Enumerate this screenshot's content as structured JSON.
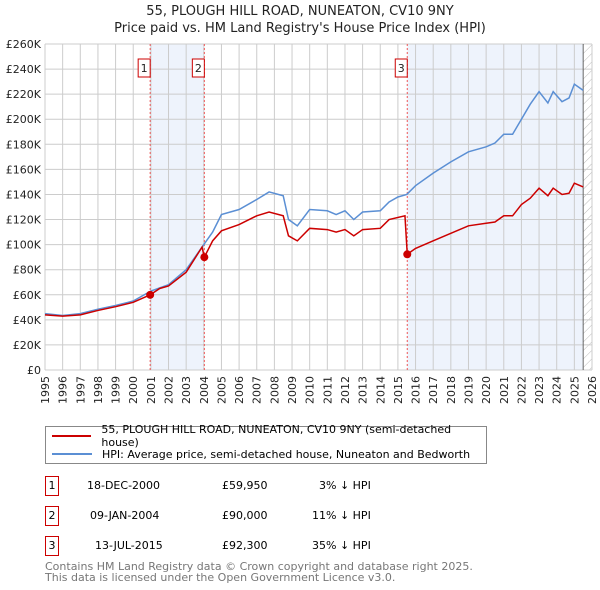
{
  "chart_data": {
    "type": "line",
    "title": "55, PLOUGH HILL ROAD, NUNEATON, CV10 9NY",
    "subtitle": "Price paid vs. HM Land Registry's House Price Index (HPI)",
    "xlim": [
      1995,
      2026
    ],
    "ylim": [
      0,
      260000
    ],
    "x_ticks": [
      "1995",
      "1996",
      "1997",
      "1998",
      "1999",
      "2000",
      "2001",
      "2002",
      "2003",
      "2004",
      "2005",
      "2006",
      "2007",
      "2008",
      "2009",
      "2010",
      "2011",
      "2012",
      "2013",
      "2014",
      "2015",
      "2016",
      "2017",
      "2018",
      "2019",
      "2020",
      "2021",
      "2022",
      "2023",
      "2024",
      "2025",
      "2026"
    ],
    "y_ticks": [
      "£0",
      "£20K",
      "£40K",
      "£60K",
      "£80K",
      "£100K",
      "£120K",
      "£140K",
      "£160K",
      "£180K",
      "£200K",
      "£220K",
      "£240K",
      "£260K"
    ],
    "grid": true,
    "series": [
      {
        "name": "55, PLOUGH HILL ROAD, NUNEATON, CV10 9NY (semi-detached house)",
        "color": "#cc0000",
        "x": [
          1995,
          1996,
          1997,
          1998,
          1999,
          2000,
          2000.96,
          2001.5,
          2002,
          2003,
          2003.9,
          2004.03,
          2004.5,
          2005,
          2006,
          2007,
          2007.7,
          2008.5,
          2008.8,
          2009.3,
          2010,
          2011,
          2011.5,
          2012,
          2012.5,
          2013,
          2014,
          2014.5,
          2015.4,
          2015.53,
          2016,
          2017,
          2018,
          2019,
          2020,
          2020.5,
          2021,
          2021.5,
          2022,
          2022.5,
          2023,
          2023.5,
          2023.8,
          2024.3,
          2024.7,
          2025,
          2025.5
        ],
        "y": [
          44000,
          43000,
          44000,
          47500,
          50500,
          54000,
          59950,
          65000,
          67000,
          78000,
          98000,
          90000,
          103000,
          111000,
          116000,
          123000,
          126000,
          123000,
          107000,
          103000,
          113000,
          112000,
          110000,
          112000,
          107000,
          112000,
          113000,
          120000,
          123000,
          92300,
          97000,
          103000,
          109000,
          115000,
          117000,
          118000,
          123000,
          123000,
          132000,
          137000,
          145000,
          139000,
          145000,
          140000,
          141000,
          149000,
          146000
        ]
      },
      {
        "name": "HPI: Average price, semi-detached house, Nuneaton and Bedworth",
        "color": "#5b8fd4",
        "x": [
          1995,
          1996,
          1997,
          1998,
          1999,
          2000,
          2001,
          2002,
          2003,
          2004,
          2004.5,
          2005,
          2006,
          2007,
          2007.7,
          2008.5,
          2008.8,
          2009.3,
          2010,
          2011,
          2011.5,
          2012,
          2012.5,
          2013,
          2014,
          2014.5,
          2015,
          2015.5,
          2016,
          2017,
          2018,
          2019,
          2020,
          2020.5,
          2021,
          2021.5,
          2022,
          2022.5,
          2023,
          2023.5,
          2023.8,
          2024.3,
          2024.7,
          2025,
          2025.3,
          2025.5
        ],
        "y": [
          45000,
          43500,
          45000,
          48500,
          51500,
          55000,
          63000,
          68000,
          80000,
          100000,
          110000,
          124000,
          128000,
          136000,
          142000,
          139000,
          120000,
          115000,
          128000,
          127000,
          124000,
          127000,
          120000,
          126000,
          127000,
          134000,
          138000,
          140000,
          147000,
          157000,
          166000,
          174000,
          178000,
          181000,
          188000,
          188000,
          200000,
          212000,
          222000,
          213000,
          222000,
          214000,
          217000,
          228000,
          225000,
          223000
        ]
      }
    ],
    "sales": [
      {
        "label": "1",
        "x": 2000.96,
        "date": "18-DEC-2000",
        "price": "£59,950",
        "y": 59950,
        "hpi": "3% ↓ HPI"
      },
      {
        "label": "2",
        "x": 2004.03,
        "date": "09-JAN-2004",
        "price": "£90,000",
        "y": 90000,
        "hpi": "11% ↓ HPI"
      },
      {
        "label": "3",
        "x": 2015.53,
        "date": "13-JUL-2015",
        "price": "£92,300",
        "y": 92300,
        "hpi": "35% ↓ HPI"
      }
    ],
    "forecast_start": 2025.5
  },
  "footer": [
    "Contains HM Land Registry data © Crown copyright and database right 2025.",
    "This data is licensed under the Open Government Licence v3.0."
  ]
}
